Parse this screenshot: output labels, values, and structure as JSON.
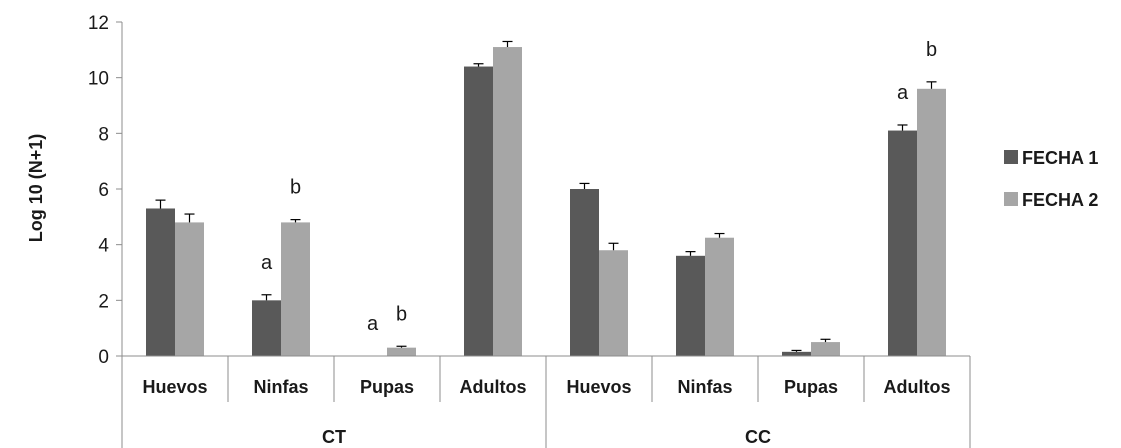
{
  "chart_data": {
    "type": "bar",
    "title": "",
    "ylabel": "Log 10 (N+1)",
    "xlabel": "",
    "ylim": [
      0,
      12
    ],
    "yticks": [
      0,
      2,
      4,
      6,
      8,
      10,
      12
    ],
    "grid": false,
    "legend_position": "right",
    "groups": [
      {
        "label": "CT",
        "categories": [
          "Huevos",
          "Ninfas",
          "Pupas",
          "Adultos"
        ]
      },
      {
        "label": "CC",
        "categories": [
          "Huevos",
          "Ninfas",
          "Pupas",
          "Adultos"
        ]
      }
    ],
    "series": [
      {
        "name": "FECHA 1",
        "color": "#595959",
        "values": [
          5.3,
          2.0,
          0.0,
          10.4,
          6.0,
          3.6,
          0.15,
          8.1
        ],
        "errors": [
          0.3,
          0.2,
          0.0,
          0.1,
          0.2,
          0.15,
          0.05,
          0.2
        ]
      },
      {
        "name": "FECHA 2",
        "color": "#a6a6a6",
        "values": [
          4.8,
          4.8,
          0.3,
          11.1,
          3.8,
          4.25,
          0.5,
          9.6
        ],
        "errors": [
          0.3,
          0.1,
          0.05,
          0.2,
          0.25,
          0.15,
          0.1,
          0.25
        ]
      }
    ],
    "annotations": [
      {
        "category_index": 1,
        "series_index": 0,
        "text": "a"
      },
      {
        "category_index": 1,
        "series_index": 1,
        "text": "b"
      },
      {
        "category_index": 2,
        "series_index": 0,
        "text": "a"
      },
      {
        "category_index": 2,
        "series_index": 1,
        "text": "b"
      },
      {
        "category_index": 7,
        "series_index": 0,
        "text": "a"
      },
      {
        "category_index": 7,
        "series_index": 1,
        "text": "b"
      }
    ]
  }
}
